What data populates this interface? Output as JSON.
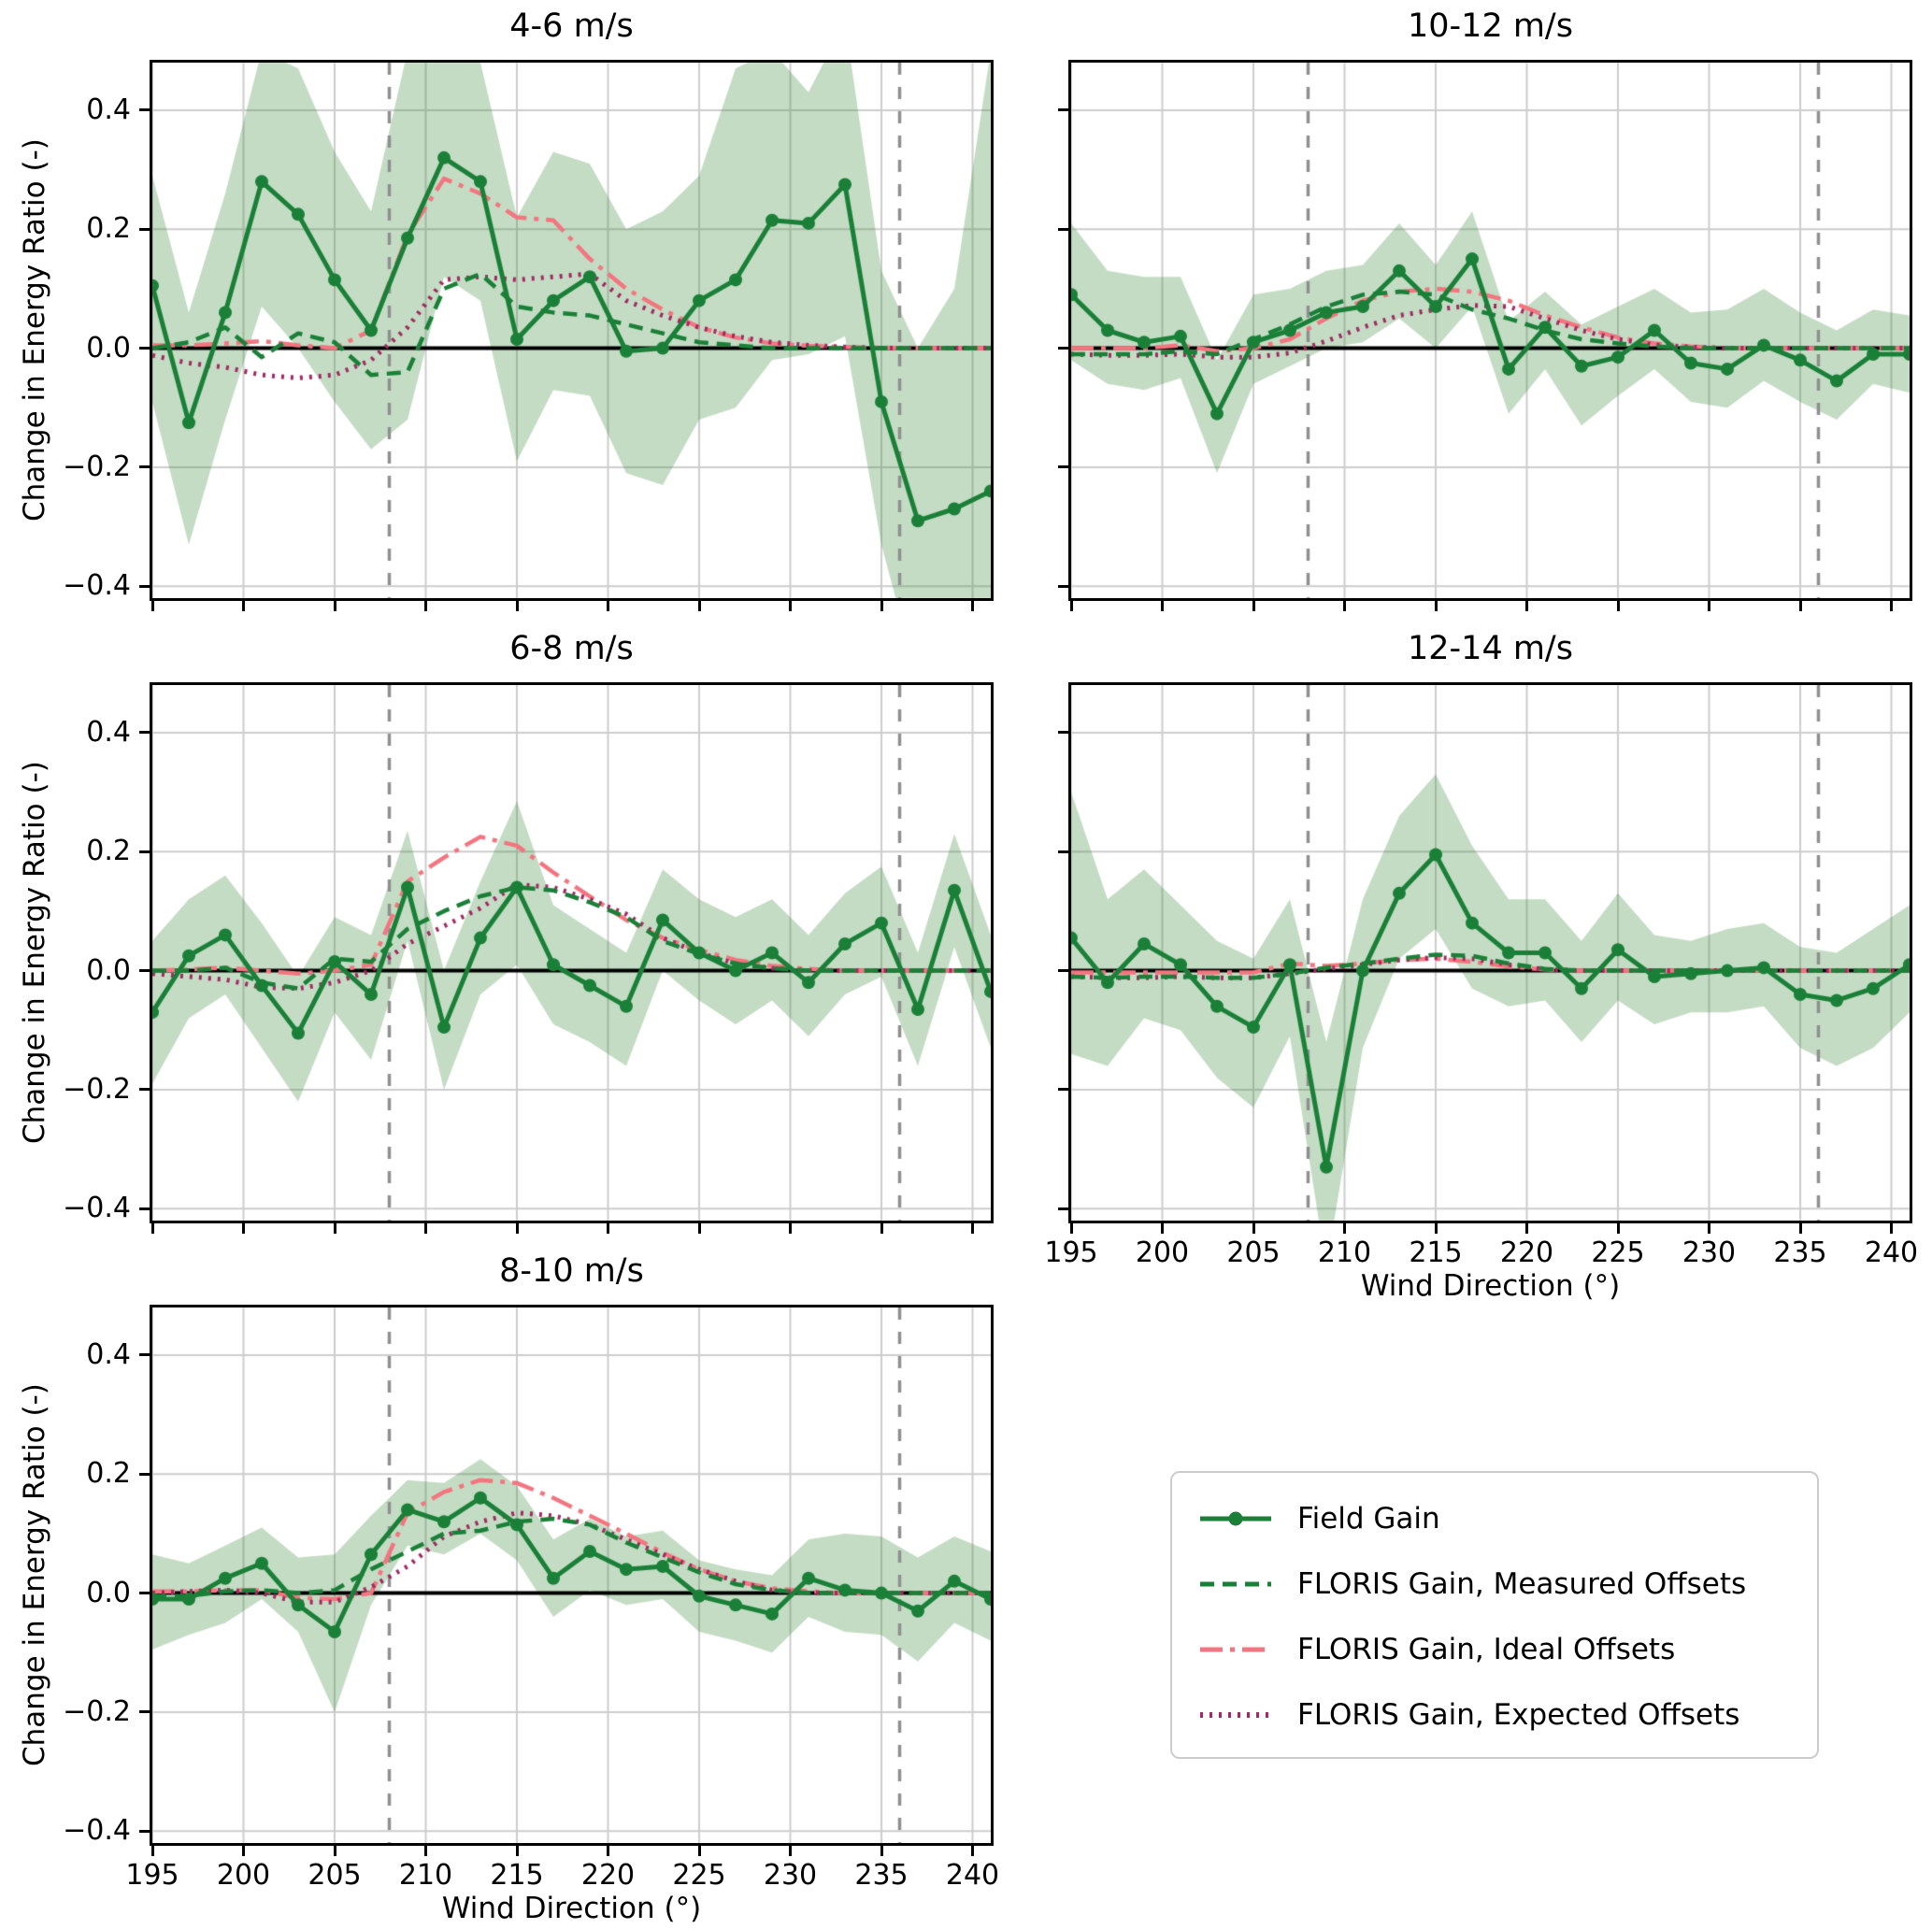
{
  "figure": {
    "background": "#ffffff"
  },
  "colors": {
    "field": "#1a8038",
    "measured": "#1a8038",
    "ideal": "#f4757f",
    "expected": "#a12a63",
    "band": "rgba(58,138,58,0.30)",
    "grid": "#cdcdcd",
    "vline": "#8f8f8f",
    "zero": "#000000",
    "spine": "#000000",
    "legend_border": "#cccccc"
  },
  "axes": {
    "ylabel": "Change in Energy Ratio (-)",
    "xlabel": "Wind Direction (°)",
    "xticks": [
      195,
      200,
      205,
      210,
      215,
      220,
      225,
      230,
      235,
      240
    ],
    "xtick_labels": [
      "195",
      "200",
      "205",
      "210",
      "215",
      "220",
      "225",
      "230",
      "235",
      "240"
    ],
    "yticks": [
      0.4,
      0.2,
      0.0,
      -0.2,
      -0.4
    ],
    "ytick_labels": [
      "0.4",
      "0.2",
      "0.0",
      "−0.2",
      "−0.4"
    ],
    "xlim": [
      195,
      241
    ],
    "ylim": [
      -0.42,
      0.48
    ],
    "vlines": [
      208,
      236
    ],
    "grid": true,
    "shared_axes": true
  },
  "legend": {
    "position": "bottom-right cell",
    "items": [
      {
        "label": "Field Gain",
        "key": "field"
      },
      {
        "label": "FLORIS Gain, Measured Offsets",
        "key": "measured"
      },
      {
        "label": "FLORIS Gain, Ideal Offsets",
        "key": "ideal"
      },
      {
        "label": "FLORIS Gain, Expected Offsets",
        "key": "expected"
      }
    ]
  },
  "chart_data": [
    {
      "type": "line",
      "title": "4-6 m/s",
      "x": [
        195,
        197,
        199,
        201,
        203,
        205,
        207,
        209,
        211,
        213,
        215,
        217,
        219,
        221,
        223,
        225,
        227,
        229,
        231,
        233,
        235,
        237,
        239,
        241
      ],
      "series": [
        {
          "name": "Field Gain",
          "key": "field",
          "values": [
            0.105,
            -0.125,
            0.06,
            0.28,
            0.225,
            0.115,
            0.03,
            0.185,
            0.32,
            0.28,
            0.015,
            0.08,
            0.12,
            -0.005,
            0.0,
            0.08,
            0.115,
            0.215,
            0.21,
            0.275,
            -0.09,
            -0.29,
            -0.27,
            -0.24
          ]
        },
        {
          "name": "FLORIS Gain, Measured Offsets",
          "key": "measured",
          "values": [
            0.0,
            0.01,
            0.035,
            -0.015,
            0.025,
            0.01,
            -0.045,
            -0.04,
            0.1,
            0.125,
            0.07,
            0.06,
            0.055,
            0.04,
            0.025,
            0.01,
            0.005,
            0.0,
            0.0,
            0.0,
            0.0,
            0.0,
            0.0,
            0.0
          ]
        },
        {
          "name": "FLORIS Gain, Ideal Offsets",
          "key": "ideal",
          "values": [
            0.005,
            0.005,
            0.008,
            0.012,
            0.005,
            0.0,
            0.03,
            0.19,
            0.285,
            0.26,
            0.22,
            0.215,
            0.15,
            0.1,
            0.065,
            0.035,
            0.018,
            0.008,
            0.004,
            0.002,
            0.001,
            0.0,
            0.0,
            0.0
          ]
        },
        {
          "name": "FLORIS Gain, Expected Offsets",
          "key": "expected",
          "values": [
            -0.012,
            -0.025,
            -0.032,
            -0.045,
            -0.05,
            -0.045,
            -0.02,
            0.035,
            0.115,
            0.12,
            0.115,
            0.12,
            0.125,
            0.08,
            0.055,
            0.035,
            0.02,
            0.01,
            0.005,
            0.002,
            0.0,
            0.0,
            0.0,
            0.0
          ]
        }
      ],
      "band": {
        "name": "Field Gain uncertainty",
        "upper": [
          0.29,
          0.06,
          0.26,
          0.5,
          0.47,
          0.33,
          0.23,
          0.5,
          0.52,
          0.48,
          0.22,
          0.33,
          0.31,
          0.2,
          0.23,
          0.29,
          0.47,
          0.5,
          0.43,
          0.55,
          0.13,
          0.0,
          0.1,
          0.5
        ],
        "lower": [
          -0.09,
          -0.33,
          -0.12,
          0.07,
          0.0,
          -0.09,
          -0.17,
          -0.12,
          0.12,
          0.08,
          -0.19,
          -0.07,
          -0.08,
          -0.21,
          -0.23,
          -0.12,
          -0.1,
          -0.02,
          -0.01,
          0.02,
          -0.33,
          -0.56,
          -0.51,
          -0.46
        ]
      }
    },
    {
      "type": "line",
      "title": "10-12 m/s",
      "x": [
        195,
        197,
        199,
        201,
        203,
        205,
        207,
        209,
        211,
        213,
        215,
        217,
        219,
        221,
        223,
        225,
        227,
        229,
        231,
        233,
        235,
        237,
        239,
        241
      ],
      "series": [
        {
          "name": "Field Gain",
          "key": "field",
          "values": [
            0.09,
            0.03,
            0.01,
            0.02,
            -0.11,
            0.01,
            0.03,
            0.06,
            0.07,
            0.13,
            0.07,
            0.15,
            -0.035,
            0.035,
            -0.03,
            -0.015,
            0.03,
            -0.025,
            -0.035,
            0.005,
            -0.02,
            -0.055,
            -0.01,
            -0.01
          ]
        },
        {
          "name": "FLORIS Gain, Measured Offsets",
          "key": "measured",
          "values": [
            -0.01,
            -0.01,
            -0.01,
            -0.005,
            -0.01,
            0.015,
            0.04,
            0.07,
            0.09,
            0.095,
            0.09,
            0.065,
            0.05,
            0.03,
            0.015,
            0.008,
            0.003,
            0.0,
            0.0,
            0.0,
            0.0,
            0.0,
            0.0,
            0.0
          ]
        },
        {
          "name": "FLORIS Gain, Ideal Offsets",
          "key": "ideal",
          "values": [
            0.0,
            0.0,
            0.0,
            0.005,
            -0.005,
            0.0,
            0.015,
            0.05,
            0.08,
            0.095,
            0.1,
            0.095,
            0.08,
            0.055,
            0.035,
            0.018,
            0.008,
            0.003,
            0.0,
            0.0,
            0.0,
            0.0,
            0.0,
            0.0
          ]
        },
        {
          "name": "FLORIS Gain, Expected Offsets",
          "key": "expected",
          "values": [
            -0.01,
            -0.012,
            -0.012,
            -0.01,
            -0.015,
            -0.015,
            -0.008,
            0.012,
            0.035,
            0.055,
            0.065,
            0.072,
            0.07,
            0.05,
            0.03,
            0.015,
            0.006,
            0.002,
            0.0,
            0.0,
            0.0,
            0.0,
            0.0,
            0.0
          ]
        }
      ],
      "band": {
        "name": "Field Gain uncertainty",
        "upper": [
          0.21,
          0.13,
          0.12,
          0.12,
          -0.02,
          0.09,
          0.1,
          0.13,
          0.14,
          0.21,
          0.14,
          0.23,
          0.045,
          0.095,
          0.04,
          0.07,
          0.1,
          0.06,
          0.065,
          0.1,
          0.06,
          0.03,
          0.065,
          0.055
        ],
        "lower": [
          -0.02,
          -0.06,
          -0.07,
          -0.05,
          -0.21,
          -0.06,
          -0.03,
          0.0,
          0.01,
          0.05,
          0.0,
          0.07,
          -0.11,
          -0.035,
          -0.13,
          -0.08,
          -0.035,
          -0.09,
          -0.1,
          -0.055,
          -0.09,
          -0.12,
          -0.06,
          -0.075
        ]
      }
    },
    {
      "type": "line",
      "title": "6-8 m/s",
      "x": [
        195,
        197,
        199,
        201,
        203,
        205,
        207,
        209,
        211,
        213,
        215,
        217,
        219,
        221,
        223,
        225,
        227,
        229,
        231,
        233,
        235,
        237,
        239,
        241
      ],
      "series": [
        {
          "name": "Field Gain",
          "key": "field",
          "values": [
            -0.07,
            0.025,
            0.06,
            -0.025,
            -0.105,
            0.015,
            -0.04,
            0.14,
            -0.095,
            0.055,
            0.14,
            0.01,
            -0.025,
            -0.06,
            0.085,
            0.03,
            0.0,
            0.03,
            -0.02,
            0.045,
            0.08,
            -0.065,
            0.135,
            -0.035
          ]
        },
        {
          "name": "FLORIS Gain, Measured Offsets",
          "key": "measured",
          "values": [
            0.0,
            0.0,
            0.005,
            -0.02,
            -0.03,
            0.02,
            0.015,
            0.07,
            0.1,
            0.125,
            0.14,
            0.135,
            0.115,
            0.09,
            0.05,
            0.028,
            0.012,
            0.004,
            0.0,
            0.0,
            0.0,
            0.0,
            0.0,
            0.0
          ]
        },
        {
          "name": "FLORIS Gain, Ideal Offsets",
          "key": "ideal",
          "values": [
            0.0,
            0.002,
            0.005,
            0.0,
            -0.005,
            0.0,
            0.01,
            0.15,
            0.19,
            0.225,
            0.21,
            0.165,
            0.125,
            0.085,
            0.055,
            0.035,
            0.018,
            0.008,
            0.003,
            0.0,
            0.0,
            0.0,
            0.0,
            0.0
          ]
        },
        {
          "name": "FLORIS Gain, Expected Offsets",
          "key": "expected",
          "values": [
            -0.005,
            -0.01,
            -0.015,
            -0.028,
            -0.03,
            -0.02,
            0.0,
            0.045,
            0.075,
            0.105,
            0.145,
            0.14,
            0.12,
            0.095,
            0.055,
            0.03,
            0.012,
            0.004,
            0.0,
            0.0,
            0.0,
            0.0,
            0.0,
            0.0
          ]
        }
      ],
      "band": {
        "name": "Field Gain uncertainty",
        "upper": [
          0.05,
          0.12,
          0.16,
          0.08,
          -0.01,
          0.09,
          0.06,
          0.235,
          0.0,
          0.15,
          0.285,
          0.11,
          0.07,
          0.03,
          0.17,
          0.12,
          0.09,
          0.12,
          0.06,
          0.13,
          0.175,
          0.03,
          0.23,
          0.06
        ],
        "lower": [
          -0.19,
          -0.08,
          -0.04,
          -0.13,
          -0.22,
          -0.07,
          -0.15,
          0.05,
          -0.2,
          -0.04,
          0.01,
          -0.09,
          -0.12,
          -0.16,
          0.0,
          -0.05,
          -0.09,
          -0.05,
          -0.11,
          -0.04,
          -0.01,
          -0.16,
          0.04,
          -0.13
        ]
      }
    },
    {
      "type": "line",
      "title": "12-14 m/s",
      "x": [
        195,
        197,
        199,
        201,
        203,
        205,
        207,
        209,
        211,
        213,
        215,
        217,
        219,
        221,
        223,
        225,
        227,
        229,
        231,
        233,
        235,
        237,
        239,
        241
      ],
      "series": [
        {
          "name": "Field Gain",
          "key": "field",
          "values": [
            0.055,
            -0.02,
            0.045,
            0.01,
            -0.06,
            -0.095,
            0.01,
            -0.33,
            0.0,
            0.13,
            0.195,
            0.08,
            0.03,
            0.03,
            -0.03,
            0.035,
            -0.01,
            -0.005,
            0.0,
            0.005,
            -0.04,
            -0.05,
            -0.03,
            0.01
          ]
        },
        {
          "name": "FLORIS Gain, Measured Offsets",
          "key": "measured",
          "values": [
            -0.01,
            -0.012,
            -0.01,
            -0.01,
            -0.012,
            -0.012,
            -0.005,
            0.005,
            0.012,
            0.02,
            0.027,
            0.025,
            0.012,
            0.003,
            0.0,
            0.0,
            0.0,
            0.0,
            0.0,
            0.0,
            0.0,
            0.0,
            0.0,
            0.0
          ]
        },
        {
          "name": "FLORIS Gain, Ideal Offsets",
          "key": "ideal",
          "values": [
            -0.003,
            -0.003,
            -0.003,
            -0.003,
            -0.003,
            -0.003,
            0.012,
            0.008,
            0.012,
            0.018,
            0.02,
            0.015,
            0.007,
            0.002,
            0.0,
            0.0,
            0.0,
            0.0,
            0.0,
            0.0,
            0.0,
            0.0,
            0.0,
            0.0
          ]
        },
        {
          "name": "FLORIS Gain, Expected Offsets",
          "key": "expected",
          "values": [
            -0.01,
            -0.012,
            -0.012,
            -0.01,
            -0.012,
            -0.012,
            -0.005,
            0.003,
            0.01,
            0.018,
            0.022,
            0.02,
            0.01,
            0.002,
            0.0,
            0.0,
            0.0,
            0.0,
            0.0,
            0.0,
            0.0,
            0.0,
            0.0,
            0.0
          ]
        }
      ],
      "band": {
        "name": "Field Gain uncertainty",
        "upper": [
          0.3,
          0.12,
          0.17,
          0.11,
          0.05,
          0.02,
          0.12,
          -0.12,
          0.12,
          0.26,
          0.33,
          0.21,
          0.12,
          0.12,
          0.05,
          0.13,
          0.06,
          0.05,
          0.07,
          0.08,
          0.04,
          0.03,
          0.07,
          0.11
        ],
        "lower": [
          -0.14,
          -0.16,
          -0.08,
          -0.1,
          -0.18,
          -0.23,
          -0.11,
          -0.5,
          -0.13,
          0.02,
          0.07,
          -0.03,
          -0.06,
          -0.05,
          -0.12,
          -0.05,
          -0.09,
          -0.07,
          -0.07,
          -0.06,
          -0.13,
          -0.16,
          -0.13,
          -0.07
        ]
      }
    },
    {
      "type": "line",
      "title": "8-10 m/s",
      "x": [
        195,
        197,
        199,
        201,
        203,
        205,
        207,
        209,
        211,
        213,
        215,
        217,
        219,
        221,
        223,
        225,
        227,
        229,
        231,
        233,
        235,
        237,
        239,
        241
      ],
      "series": [
        {
          "name": "Field Gain",
          "key": "field",
          "values": [
            -0.01,
            -0.01,
            0.025,
            0.05,
            -0.02,
            -0.065,
            0.065,
            0.14,
            0.12,
            0.16,
            0.115,
            0.025,
            0.07,
            0.04,
            0.045,
            -0.005,
            -0.02,
            -0.035,
            0.025,
            0.005,
            0.0,
            -0.03,
            0.02,
            -0.01
          ]
        },
        {
          "name": "FLORIS Gain, Measured Offsets",
          "key": "measured",
          "values": [
            -0.005,
            -0.005,
            0.003,
            0.005,
            0.0,
            0.005,
            0.04,
            0.07,
            0.1,
            0.105,
            0.12,
            0.125,
            0.115,
            0.085,
            0.06,
            0.035,
            0.015,
            0.005,
            0.0,
            0.0,
            0.0,
            0.0,
            0.0,
            0.0
          ]
        },
        {
          "name": "FLORIS Gain, Ideal Offsets",
          "key": "ideal",
          "values": [
            0.003,
            0.003,
            0.005,
            0.005,
            -0.008,
            -0.01,
            0.0,
            0.135,
            0.17,
            0.19,
            0.185,
            0.16,
            0.13,
            0.1,
            0.068,
            0.04,
            0.02,
            0.008,
            0.003,
            0.0,
            0.0,
            0.0,
            0.0,
            0.0
          ]
        },
        {
          "name": "FLORIS Gain, Expected Offsets",
          "key": "expected",
          "values": [
            0.0,
            0.003,
            0.005,
            0.0,
            -0.015,
            -0.015,
            0.01,
            0.045,
            0.095,
            0.12,
            0.135,
            0.13,
            0.115,
            0.09,
            0.065,
            0.04,
            0.02,
            0.005,
            0.0,
            0.0,
            0.0,
            0.0,
            0.0,
            0.0
          ]
        }
      ],
      "band": {
        "name": "Field Gain uncertainty",
        "upper": [
          0.065,
          0.05,
          0.08,
          0.11,
          0.06,
          0.065,
          0.13,
          0.19,
          0.185,
          0.225,
          0.18,
          0.09,
          0.125,
          0.095,
          0.105,
          0.055,
          0.04,
          0.03,
          0.09,
          0.1,
          0.095,
          0.06,
          0.095,
          0.07
        ],
        "lower": [
          -0.095,
          -0.07,
          -0.05,
          -0.01,
          -0.065,
          -0.2,
          -0.02,
          0.08,
          0.065,
          0.1,
          0.055,
          -0.04,
          0.005,
          -0.02,
          -0.01,
          -0.065,
          -0.08,
          -0.1,
          -0.04,
          -0.065,
          -0.07,
          -0.115,
          -0.05,
          -0.08
        ]
      }
    }
  ]
}
